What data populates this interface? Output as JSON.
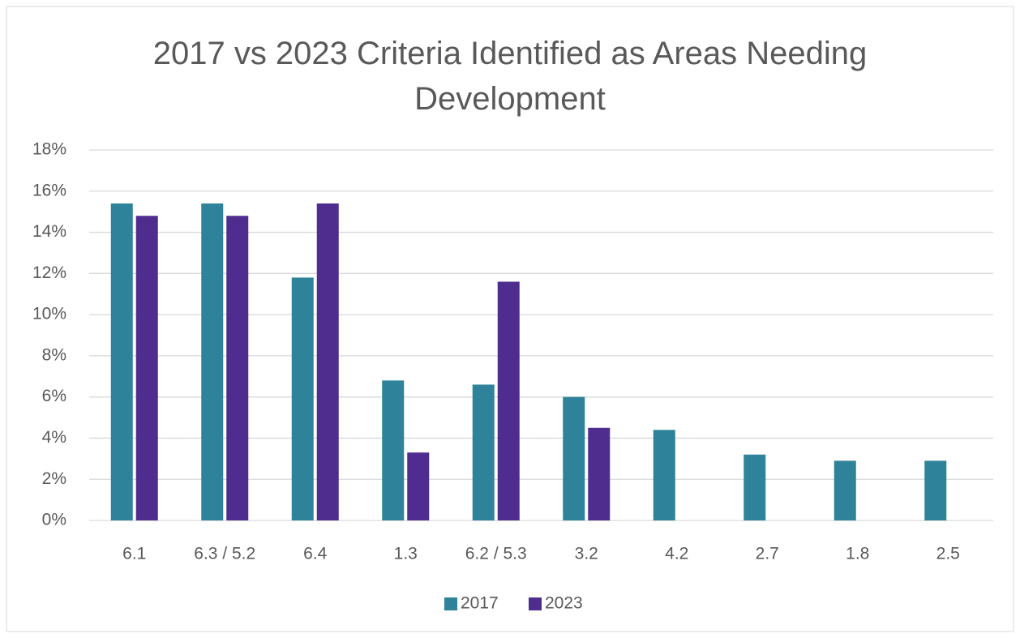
{
  "chart_data": {
    "type": "bar",
    "title": "2017 vs 2023 Criteria Identified as Areas Needing Development",
    "categories": [
      "6.1",
      "6.3 / 5.2",
      "6.4",
      "1.3",
      "6.2 / 5.3",
      "3.2",
      "4.2",
      "2.7",
      "1.8",
      "2.5"
    ],
    "series": [
      {
        "name": "2017",
        "color": "#2e8299",
        "values": [
          15.4,
          15.4,
          11.8,
          6.8,
          6.6,
          6.0,
          4.4,
          3.2,
          2.9,
          2.9
        ]
      },
      {
        "name": "2023",
        "color": "#4f2d8f",
        "values": [
          14.8,
          14.8,
          15.4,
          3.3,
          11.6,
          4.5,
          null,
          null,
          null,
          null
        ]
      }
    ],
    "ylim": [
      0,
      18
    ],
    "yticks": [
      {
        "value": 0,
        "label": "0%"
      },
      {
        "value": 2,
        "label": "2%"
      },
      {
        "value": 4,
        "label": "4%"
      },
      {
        "value": 6,
        "label": "6%"
      },
      {
        "value": 8,
        "label": "8%"
      },
      {
        "value": 10,
        "label": "10%"
      },
      {
        "value": 12,
        "label": "12%"
      },
      {
        "value": 14,
        "label": "14%"
      },
      {
        "value": 16,
        "label": "16%"
      },
      {
        "value": 18,
        "label": "18%"
      }
    ],
    "grid": true,
    "legend": "bottom"
  }
}
